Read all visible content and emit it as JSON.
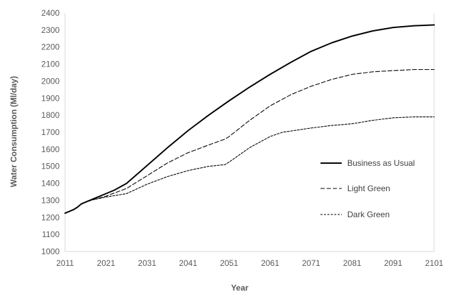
{
  "chart_data": {
    "type": "line",
    "title": "",
    "xlabel": "Year",
    "ylabel": "Water Consumption (Ml/day)",
    "xlim": [
      2011,
      2101
    ],
    "ylim": [
      1000,
      2400
    ],
    "x_ticks": [
      2011,
      2021,
      2031,
      2041,
      2051,
      2061,
      2071,
      2081,
      2091,
      2101
    ],
    "y_ticks": [
      1000,
      1100,
      1200,
      1300,
      1400,
      1500,
      1600,
      1700,
      1800,
      1900,
      2000,
      2100,
      2200,
      2300,
      2400
    ],
    "grid": false,
    "legend_position": "right",
    "series": [
      {
        "name": "Business as Usual",
        "style": "solid",
        "x": [
          2011,
          2013,
          2014,
          2015,
          2016,
          2018,
          2021,
          2023,
          2026,
          2031,
          2036,
          2041,
          2046,
          2051,
          2056,
          2061,
          2066,
          2071,
          2076,
          2081,
          2086,
          2091,
          2096,
          2101
        ],
        "y": [
          1225,
          1245,
          1260,
          1280,
          1290,
          1310,
          1340,
          1360,
          1400,
          1505,
          1610,
          1710,
          1800,
          1885,
          1965,
          2040,
          2110,
          2175,
          2225,
          2265,
          2295,
          2315,
          2325,
          2330
        ]
      },
      {
        "name": "Light Green",
        "style": "dashed",
        "x": [
          2011,
          2013,
          2014,
          2015,
          2016,
          2018,
          2021,
          2026,
          2031,
          2036,
          2041,
          2046,
          2050,
          2051,
          2056,
          2061,
          2066,
          2071,
          2076,
          2081,
          2086,
          2091,
          2096,
          2101
        ],
        "y": [
          1225,
          1245,
          1260,
          1280,
          1290,
          1305,
          1325,
          1370,
          1445,
          1520,
          1580,
          1625,
          1660,
          1675,
          1770,
          1855,
          1920,
          1970,
          2010,
          2040,
          2055,
          2062,
          2068,
          2068
        ]
      },
      {
        "name": "Dark Green",
        "style": "dotted",
        "x": [
          2011,
          2013,
          2014,
          2015,
          2016,
          2018,
          2021,
          2026,
          2031,
          2036,
          2041,
          2046,
          2050,
          2051,
          2056,
          2061,
          2064,
          2071,
          2076,
          2081,
          2086,
          2091,
          2096,
          2101
        ],
        "y": [
          1225,
          1245,
          1260,
          1280,
          1290,
          1305,
          1320,
          1340,
          1395,
          1440,
          1475,
          1500,
          1510,
          1525,
          1610,
          1675,
          1700,
          1725,
          1740,
          1750,
          1770,
          1785,
          1790,
          1790
        ]
      }
    ]
  }
}
